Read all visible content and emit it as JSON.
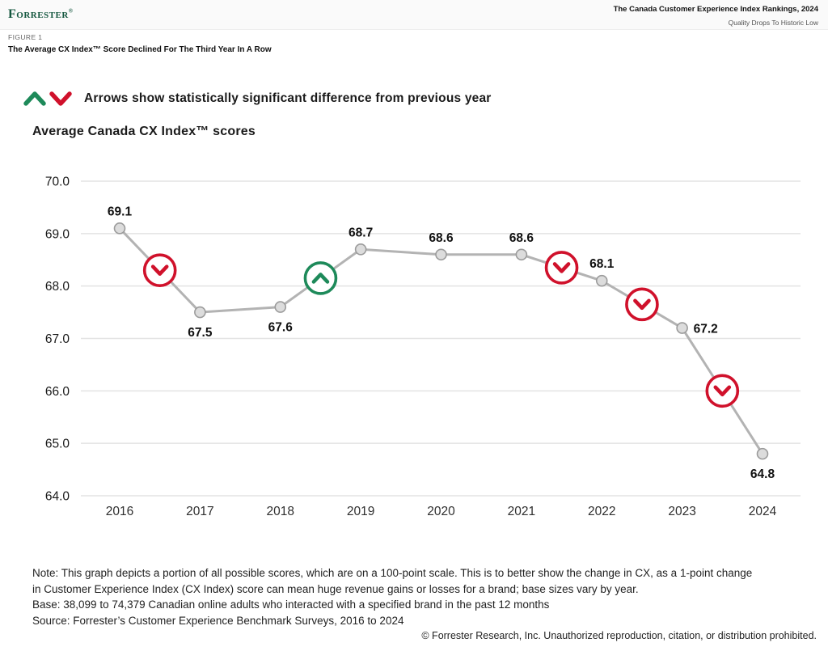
{
  "header": {
    "logo_text": "Forrester",
    "logo_mark": "®",
    "report_title": "The Canada Customer Experience Index Rankings, 2024",
    "report_subtitle": "Quality Drops To Historic Low"
  },
  "figure": {
    "label": "FIGURE 1",
    "title": "The Average CX Index™ Score Declined For The Third Year In A Row"
  },
  "legend": {
    "text": "Arrows show statistically significant difference from previous year"
  },
  "chart_title": "Average Canada CX Index™ scores",
  "chart_data": {
    "type": "line",
    "title": "Average Canada CX Index scores",
    "categories": [
      "2016",
      "2017",
      "2018",
      "2019",
      "2020",
      "2021",
      "2022",
      "2023",
      "2024"
    ],
    "values": [
      69.1,
      67.5,
      67.6,
      68.7,
      68.6,
      68.6,
      68.1,
      67.2,
      64.8
    ],
    "point_labels": [
      "69.1",
      "67.5",
      "67.6",
      "68.7",
      "68.6",
      "68.6",
      "68.1",
      "67.2",
      "64.8"
    ],
    "label_positions": [
      "above",
      "below",
      "below",
      "above",
      "above",
      "above",
      "above",
      "right",
      "below"
    ],
    "ylim": [
      64.0,
      70.0
    ],
    "yticks": [
      "70.0",
      "69.0",
      "68.0",
      "67.0",
      "66.0",
      "65.0",
      "64.0"
    ],
    "grid": "horizontal",
    "legend_position": "top-left",
    "significance_markers": [
      {
        "between": [
          "2016",
          "2017"
        ],
        "direction": "down"
      },
      {
        "between": [
          "2018",
          "2019"
        ],
        "direction": "up"
      },
      {
        "between": [
          "2021",
          "2022"
        ],
        "direction": "down"
      },
      {
        "between": [
          "2022",
          "2023"
        ],
        "direction": "down"
      },
      {
        "between": [
          "2023",
          "2024"
        ],
        "direction": "down"
      }
    ],
    "colors": {
      "line": "#b3b3b3",
      "marker_fill": "#dcdcdc",
      "marker_stroke": "#9b9b9b",
      "gridline": "#e3e3e3",
      "significant_down": "#d0112b",
      "significant_up": "#1e8a5a",
      "tick_label": "#1a1a1a",
      "data_label": "#111111"
    }
  },
  "notes": {
    "line1": "Note: This graph depicts a portion of all possible scores, which are on a 100-point scale. This is to better show the change in CX, as a 1-point change",
    "line2": "in Customer Experience Index (CX Index) score can mean huge revenue gains or losses for a brand; base sizes vary by year.",
    "line3": "Base: 38,099 to 74,379 Canadian online adults who interacted with a specified brand in the past 12 months",
    "line4": "Source: Forrester’s Customer Experience Benchmark Surveys, 2016 to 2024"
  },
  "footer": {
    "copyright": "© Forrester Research, Inc. Unauthorized reproduction, citation, or distribution prohibited."
  },
  "brand": {
    "forrester_green": "#14573f"
  }
}
